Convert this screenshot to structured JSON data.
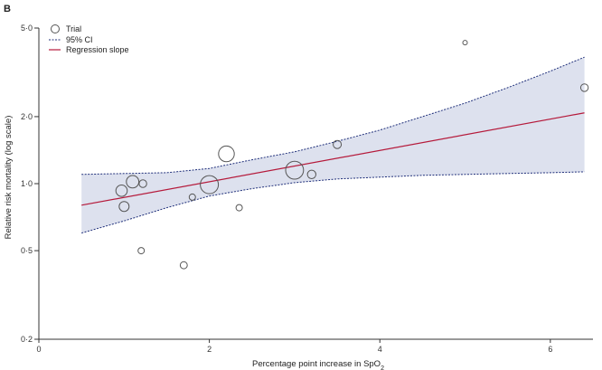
{
  "chart_data": {
    "type": "scatter",
    "panel_label": "B",
    "title": "",
    "xlabel_main": "Percentage point increase in SpO",
    "xlabel_subscript": "2",
    "ylabel": "Relative risk mortality (log scale)",
    "y_scale": "log",
    "xlim": [
      0,
      6.5
    ],
    "ylim": [
      0.2,
      5.0
    ],
    "x_ticks": [
      0,
      2,
      4,
      6
    ],
    "x_tick_labels": [
      "0",
      "2",
      "4",
      "6"
    ],
    "y_ticks": [
      0.2,
      0.5,
      1.0,
      2.0,
      5.0
    ],
    "y_tick_labels": [
      "0·2",
      "0·5",
      "1·0",
      "2·0",
      "5·0"
    ],
    "legend": {
      "placement": "top-left",
      "trial_label": "Trial",
      "ci_label": "95% CI",
      "slope_label": "Regression slope"
    },
    "colors": {
      "ci_fill": "#dde1ee",
      "ci_line": "#1f2f7a",
      "regression": "#b51a3b",
      "marker": "#555555",
      "axis": "#333333"
    },
    "series": [
      {
        "name": "Trial",
        "points": [
          {
            "x": 0.97,
            "y": 0.93,
            "weight": 1.6
          },
          {
            "x": 1.0,
            "y": 0.79,
            "weight": 1.2
          },
          {
            "x": 1.1,
            "y": 1.02,
            "weight": 1.9
          },
          {
            "x": 1.2,
            "y": 0.5,
            "weight": 0.5
          },
          {
            "x": 1.22,
            "y": 1.0,
            "weight": 0.7
          },
          {
            "x": 1.7,
            "y": 0.43,
            "weight": 0.6
          },
          {
            "x": 1.8,
            "y": 0.87,
            "weight": 0.5
          },
          {
            "x": 2.0,
            "y": 0.99,
            "weight": 4.0
          },
          {
            "x": 2.2,
            "y": 1.36,
            "weight": 3.0
          },
          {
            "x": 2.35,
            "y": 0.78,
            "weight": 0.5
          },
          {
            "x": 3.0,
            "y": 1.15,
            "weight": 3.9
          },
          {
            "x": 3.2,
            "y": 1.1,
            "weight": 0.9
          },
          {
            "x": 3.5,
            "y": 1.5,
            "weight": 0.8
          },
          {
            "x": 5.0,
            "y": 4.3,
            "weight": 0.25
          },
          {
            "x": 6.4,
            "y": 2.7,
            "weight": 0.7
          }
        ]
      }
    ],
    "regression": {
      "x": [
        0.5,
        6.4
      ],
      "y": [
        0.8,
        2.08
      ]
    },
    "ci_upper": {
      "x": [
        0.5,
        1.0,
        1.5,
        2.0,
        2.5,
        3.0,
        3.5,
        4.0,
        4.5,
        5.0,
        5.5,
        6.0,
        6.4
      ],
      "y": [
        1.1,
        1.11,
        1.12,
        1.17,
        1.28,
        1.39,
        1.55,
        1.74,
        2.0,
        2.3,
        2.7,
        3.2,
        3.7
      ]
    },
    "ci_lower": {
      "x": [
        0.5,
        1.0,
        1.5,
        2.0,
        2.5,
        3.0,
        3.5,
        4.0,
        4.5,
        5.0,
        5.5,
        6.0,
        6.4
      ],
      "y": [
        0.6,
        0.68,
        0.78,
        0.88,
        0.95,
        1.01,
        1.05,
        1.07,
        1.09,
        1.1,
        1.11,
        1.12,
        1.13
      ]
    }
  }
}
